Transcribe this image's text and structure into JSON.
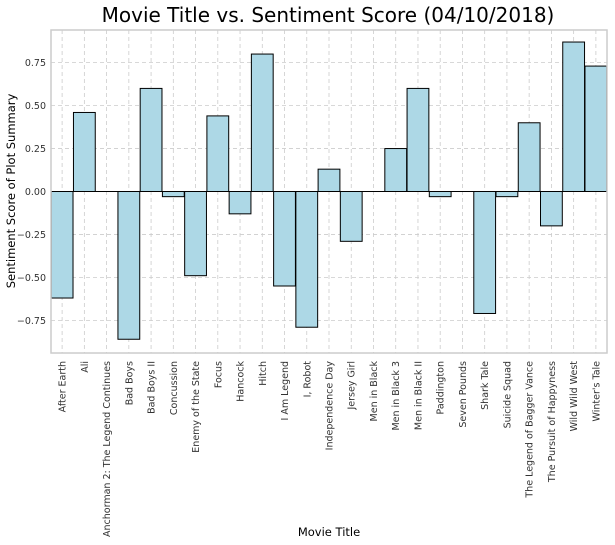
{
  "chart_data": {
    "type": "bar",
    "title": "Movie Title vs. Sentiment Score (04/10/2018)",
    "xlabel": "Movie Title",
    "ylabel": "Sentiment Score of Plot Summary",
    "categories": [
      "After Earth",
      "Ali",
      "Anchorman 2: The Legend Continues",
      "Bad Boys",
      "Bad Boys II",
      "Concussion",
      "Enemy of the State",
      "Focus",
      "Hancock",
      "Hitch",
      "I Am Legend",
      "I, Robot",
      "Independence Day",
      "Jersey Girl",
      "Men in Black",
      "Men in Black 3",
      "Men in Black II",
      "Paddington",
      "Seven Pounds",
      "Shark Tale",
      "Suicide Squad",
      "The Legend of Bagger Vance",
      "The Pursuit of Happyness",
      "Wild Wild West",
      "Winter's Tale"
    ],
    "values": [
      -0.62,
      0.46,
      0.0,
      -0.86,
      0.6,
      -0.03,
      -0.49,
      0.44,
      -0.13,
      0.8,
      -0.55,
      -0.79,
      0.13,
      -0.29,
      0.0,
      0.25,
      0.6,
      -0.03,
      0.0,
      -0.71,
      -0.03,
      0.4,
      -0.2,
      0.87,
      0.73
    ],
    "ylim": [
      -0.94,
      0.94
    ],
    "yticks": [
      -0.75,
      -0.5,
      -0.25,
      0.0,
      0.25,
      0.5,
      0.75
    ],
    "ytick_labels": [
      "−0.75",
      "−0.50",
      "−0.25",
      "0.00",
      "0.25",
      "0.50",
      "0.75"
    ],
    "grid": true,
    "colors": {
      "bar_fill": "#add8e6",
      "bar_edge": "#000000",
      "grid": "#cccccc",
      "axes_edge": "#cccccc",
      "text": "#000000",
      "tick_text": "#333333"
    }
  }
}
